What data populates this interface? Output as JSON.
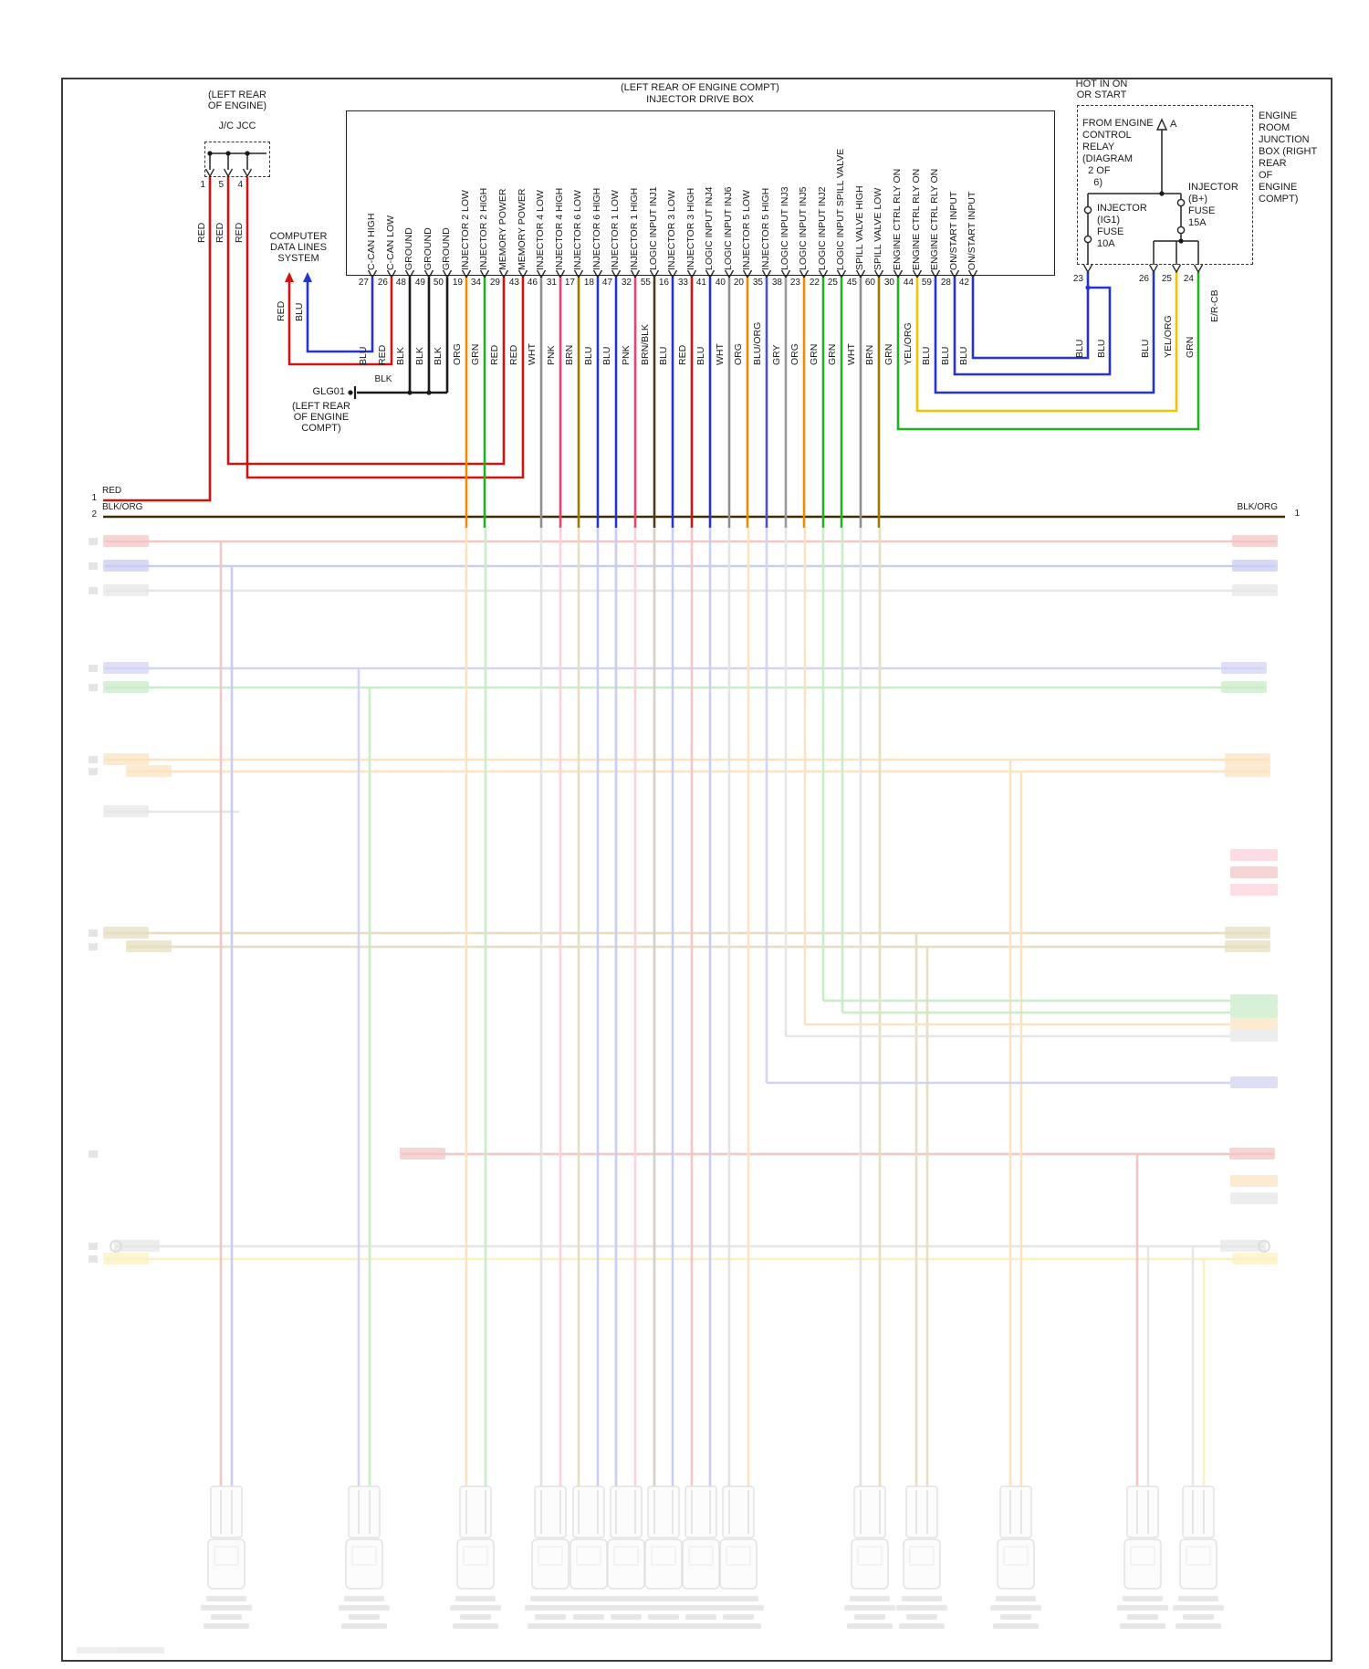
{
  "colors": {
    "RED": "#cf1212",
    "BLU": "#2633cc",
    "BLK": "#1a1a1a",
    "ORG": "#f08a00",
    "GRN": "#21b121",
    "WHT": "#8f8f8f",
    "PNK": "#ef4468",
    "BRN": "#9b7a00",
    "BRN/BLK": "#52391a",
    "BLU/ORG": "#4c51d0",
    "GRY": "#9a9a9a",
    "YEL/ORG": "#f2c400",
    "BLK/ORG": "#3f2c05"
  },
  "jc_box": {
    "location": "(LEFT REAR\nOF ENGINE)",
    "name": "J/C JCC",
    "pins": [
      {
        "number": "1",
        "wire": "RED"
      },
      {
        "number": "5",
        "wire": "RED"
      },
      {
        "number": "4",
        "wire": "RED"
      }
    ]
  },
  "computer_data_lines": {
    "label": "COMPUTER\nDATA LINES\nSYSTEM",
    "wires": [
      {
        "color": "RED"
      },
      {
        "color": "BLU"
      }
    ]
  },
  "injector_box": {
    "location": "(LEFT REAR OF ENGINE COMPT)",
    "title": "INJECTOR DRIVE BOX",
    "pins": [
      {
        "number": "27",
        "signal": "C-CAN HIGH",
        "wire": "BLU"
      },
      {
        "number": "26",
        "signal": "C-CAN LOW",
        "wire": "RED"
      },
      {
        "number": "48",
        "signal": "GROUND",
        "wire": "BLK"
      },
      {
        "number": "49",
        "signal": "GROUND",
        "wire": "BLK"
      },
      {
        "number": "50",
        "signal": "GROUND",
        "wire": "BLK"
      },
      {
        "number": "19",
        "signal": "INJECTOR 2 LOW",
        "wire": "ORG"
      },
      {
        "number": "34",
        "signal": "INJECTOR 2 HIGH",
        "wire": "GRN"
      },
      {
        "number": "29",
        "signal": "MEMORY POWER",
        "wire": "RED"
      },
      {
        "number": "43",
        "signal": "MEMORY POWER",
        "wire": "RED"
      },
      {
        "number": "46",
        "signal": "INJECTOR 4 LOW",
        "wire": "WHT"
      },
      {
        "number": "31",
        "signal": "INJECTOR 4 HIGH",
        "wire": "PNK"
      },
      {
        "number": "17",
        "signal": "INJECTOR 6 LOW",
        "wire": "BRN"
      },
      {
        "number": "18",
        "signal": "INJECTOR 6 HIGH",
        "wire": "BLU"
      },
      {
        "number": "47",
        "signal": "INJECTOR 1 LOW",
        "wire": "BLU"
      },
      {
        "number": "32",
        "signal": "INJECTOR 1 HIGH",
        "wire": "PNK"
      },
      {
        "number": "55",
        "signal": "LOGIC INPUT INJ1",
        "wire": "BRN/BLK"
      },
      {
        "number": "16",
        "signal": "INJECTOR 3 LOW",
        "wire": "BLU"
      },
      {
        "number": "33",
        "signal": "INJECTOR 3 HIGH",
        "wire": "RED"
      },
      {
        "number": "41",
        "signal": "LOGIC INPUT INJ4",
        "wire": "BLU"
      },
      {
        "number": "40",
        "signal": "LOGIC INPUT INJ6",
        "wire": "WHT"
      },
      {
        "number": "20",
        "signal": "INJECTOR 5 LOW",
        "wire": "ORG"
      },
      {
        "number": "35",
        "signal": "INJECTOR 5 HIGH",
        "wire": "BLU/ORG"
      },
      {
        "number": "38",
        "signal": "LOGIC INPUT INJ3",
        "wire": "GRY"
      },
      {
        "number": "23",
        "signal": "LOGIC INPUT INJ5",
        "wire": "ORG"
      },
      {
        "number": "22",
        "signal": "LOGIC INPUT INJ2",
        "wire": "GRN"
      },
      {
        "number": "25",
        "signal": "LOGIC INPUT SPILL VALVE",
        "wire": "GRN"
      },
      {
        "number": "45",
        "signal": "SPILL VALVE HIGH",
        "wire": "WHT"
      },
      {
        "number": "60",
        "signal": "SPILL VALVE LOW",
        "wire": "BRN"
      },
      {
        "number": "30",
        "signal": "ENGINE CTRL RLY ON",
        "wire": "GRN"
      },
      {
        "number": "44",
        "signal": "ENGINE CTRL RLY ON",
        "wire": "YEL/ORG"
      },
      {
        "number": "59",
        "signal": "ENGINE CTRL RLY ON",
        "wire": "BLU"
      },
      {
        "number": "28",
        "signal": "ON/START INPUT",
        "wire": "BLU"
      },
      {
        "number": "42",
        "signal": "ON/START INPUT",
        "wire": "BLU"
      }
    ]
  },
  "ground": {
    "name": "GLG01",
    "wire_label": "BLK",
    "location": "(LEFT REAR\nOF ENGINE\nCOMPT)"
  },
  "power": {
    "header": "HOT IN ON\nOR START",
    "relay_note": "FROM ENGINE\nCONTROL\nRELAY\n(DIAGRAM\n  2 OF\n    6)",
    "arrow": "A",
    "fuse_ig1": "INJECTOR\n(IG1)\nFUSE\n10A",
    "fuse_b": "INJECTOR\n(B+)\nFUSE\n15A",
    "junction_note": "ENGINE\nROOM\nJUNCTION\nBOX (RIGHT\nREAR\nOF\nENGINE\nCOMPT)",
    "connector": "E/R-CB",
    "pins": [
      {
        "number": "23",
        "wire": "BLU"
      },
      {
        "number": "",
        "wire": "BLU"
      },
      {
        "number": "26",
        "wire": "BLU"
      },
      {
        "number": "25",
        "wire": "YEL/ORG"
      },
      {
        "number": "24",
        "wire": "GRN"
      }
    ]
  },
  "edges": {
    "left": [
      {
        "number": "1",
        "label": "RED"
      },
      {
        "number": "2",
        "label": "BLK/ORG"
      }
    ],
    "right": [
      {
        "number": "1",
        "label": "BLK/ORG"
      }
    ]
  }
}
